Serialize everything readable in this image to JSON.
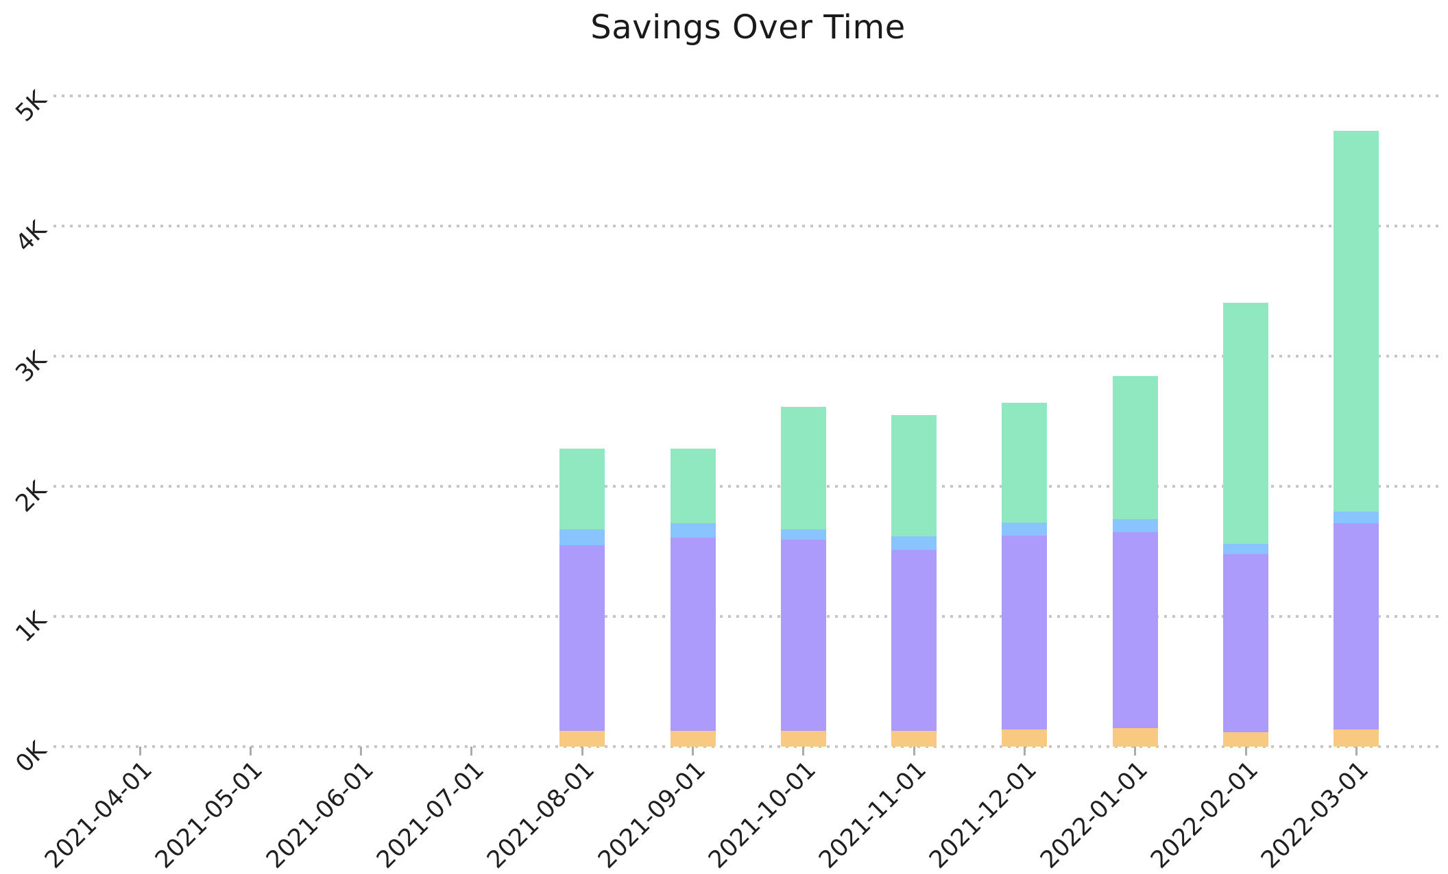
{
  "chart_data": {
    "type": "bar",
    "stacked": true,
    "title": "Savings Over Time",
    "xlabel": "",
    "ylabel": "",
    "categories": [
      "2021-04-01",
      "2021-05-01",
      "2021-06-01",
      "2021-07-01",
      "2021-08-01",
      "2021-09-01",
      "2021-10-01",
      "2021-11-01",
      "2021-12-01",
      "2022-01-01",
      "2022-02-01",
      "2022-03-01"
    ],
    "series": [
      {
        "name": "orange-segment",
        "color": "#F8CA81",
        "values": [
          0,
          0,
          0,
          0,
          120,
          120,
          120,
          120,
          130,
          140,
          110,
          130
        ]
      },
      {
        "name": "purple-segment",
        "color": "#AC9BFA",
        "values": [
          0,
          0,
          0,
          0,
          1430,
          1485,
          1470,
          1390,
          1490,
          1510,
          1370,
          1585
        ]
      },
      {
        "name": "blue-segment",
        "color": "#8AC4FE",
        "values": [
          0,
          0,
          0,
          0,
          120,
          110,
          80,
          105,
          100,
          100,
          80,
          90
        ]
      },
      {
        "name": "green-segment",
        "color": "#90E8C0",
        "values": [
          0,
          0,
          0,
          0,
          620,
          575,
          940,
          935,
          920,
          1100,
          1850,
          2925
        ]
      }
    ],
    "totals": [
      0,
      0,
      0,
      0,
      2290,
      2290,
      2610,
      2550,
      2640,
      2850,
      3410,
      4730
    ],
    "y_ticks": [
      "0K",
      "1K",
      "2K",
      "3K",
      "4K",
      "5K"
    ],
    "y_tick_values": [
      0,
      1000,
      2000,
      3000,
      4000,
      5000
    ],
    "ylim": [
      0,
      5000
    ],
    "grid": "dotted-horizontal",
    "gridline_color": "#c6c6c6",
    "legend": "none",
    "x_tick_rotation": 45,
    "y_tick_rotation": 45,
    "background_color": "#ffffff",
    "text_color": "#1f1f1f"
  }
}
